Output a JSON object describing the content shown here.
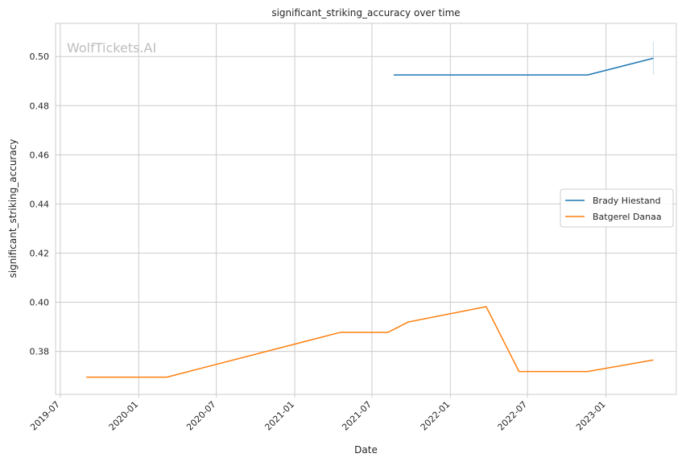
{
  "chart_data": {
    "type": "line",
    "title": "significant_striking_accuracy over time",
    "xlabel": "Date",
    "ylabel": "significant_striking_accuracy",
    "watermark": "WolfTickets.AI",
    "x_ticks": [
      "2019-07",
      "2020-01",
      "2020-07",
      "2021-01",
      "2021-07",
      "2022-01",
      "2022-07",
      "2023-01"
    ],
    "y_ticks": [
      "0.38",
      "0.40",
      "0.42",
      "0.44",
      "0.46",
      "0.48",
      "0.50"
    ],
    "xlim": [
      "2019-06-20",
      "2023-06-15"
    ],
    "ylim": [
      0.3625,
      0.5135
    ],
    "grid": true,
    "legend_position": "center-right",
    "series": [
      {
        "name": "Brady Hiestand",
        "color": "#1f77b4",
        "points": [
          {
            "x": "2021-08-21",
            "y": 0.4925
          },
          {
            "x": "2022-11-19",
            "y": 0.4925
          },
          {
            "x": "2023-04-22",
            "y": 0.4993
          }
        ]
      },
      {
        "name": "Batgerel Danaa",
        "color": "#ff7f0e",
        "points": [
          {
            "x": "2019-08-31",
            "y": 0.3695
          },
          {
            "x": "2020-03-07",
            "y": 0.3695
          },
          {
            "x": "2021-04-17",
            "y": 0.3877
          },
          {
            "x": "2021-08-07",
            "y": 0.3877
          },
          {
            "x": "2021-09-25",
            "y": 0.392
          },
          {
            "x": "2022-03-26",
            "y": 0.3982
          },
          {
            "x": "2022-06-11",
            "y": 0.3718
          },
          {
            "x": "2022-11-19",
            "y": 0.3718
          },
          {
            "x": "2023-04-22",
            "y": 0.3765
          }
        ]
      }
    ],
    "annotations": [
      {
        "type": "error-bar",
        "series": "Brady Hiestand",
        "x": "2023-04-22",
        "y_range": [
          0.4925,
          0.506
        ]
      }
    ]
  }
}
